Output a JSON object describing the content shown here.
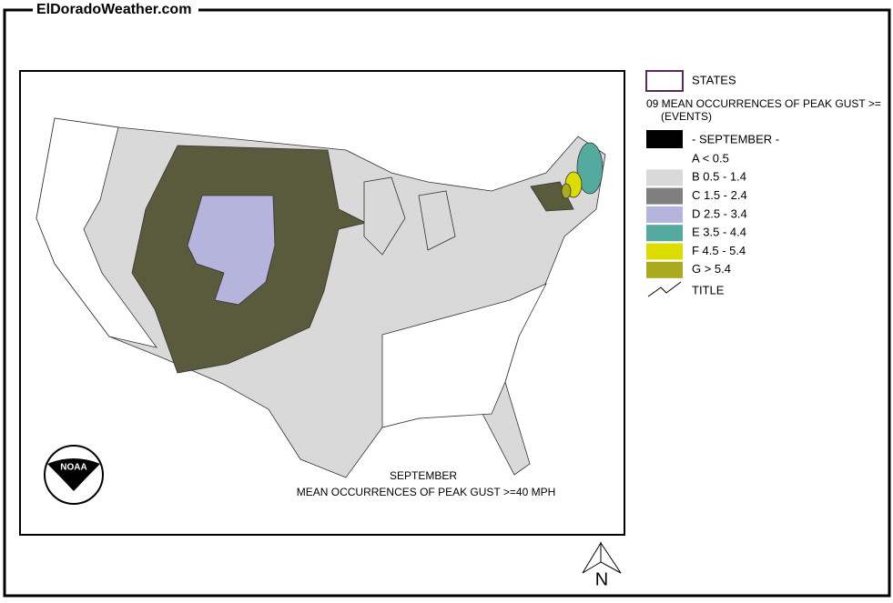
{
  "header": {
    "title": "ElDoradoWeather.com"
  },
  "legend": {
    "states_label": "STATES",
    "variable": "09 MEAN OCCURRENCES OF PEAK GUST >=",
    "units": "(EVENTS)",
    "period": "- SEPTEMBER -",
    "classes": [
      {
        "label": "A < 0.5",
        "color": "#ffffff"
      },
      {
        "label": "B 0.5 - 1.4",
        "color": "#d9d9d9"
      },
      {
        "label": "C 1.5 - 2.4",
        "color": "#7f7f7f"
      },
      {
        "label": "D 2.5 - 3.4",
        "color": "#b4b4dc"
      },
      {
        "label": "E 3.5 - 4.4",
        "color": "#55aaa0"
      },
      {
        "label": "F 4.5 - 5.4",
        "color": "#dcdc00"
      },
      {
        "label": "G > 5.4",
        "color": "#aaaa1e"
      }
    ],
    "title_label": "TITLE"
  },
  "map": {
    "caption_month": "SEPTEMBER",
    "caption_text": "MEAN OCCURRENCES OF PEAK GUST >=40 MPH",
    "logo": "NOAA",
    "north": "N"
  }
}
